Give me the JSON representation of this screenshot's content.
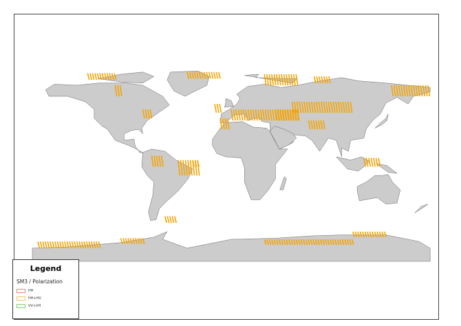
{
  "legend": {
    "title": "Legend",
    "subtitle": "SM3 / Polarization",
    "items": [
      {
        "label": "HH",
        "color": "#f08080"
      },
      {
        "label": "HH+HV",
        "color": "#f5c26b"
      },
      {
        "label": "VV+VH",
        "color": "#7ccf6a"
      }
    ]
  },
  "colors": {
    "land": "#cccccc",
    "border": "#666666",
    "coverage": "#f5a300",
    "background": "#ffffff"
  }
}
